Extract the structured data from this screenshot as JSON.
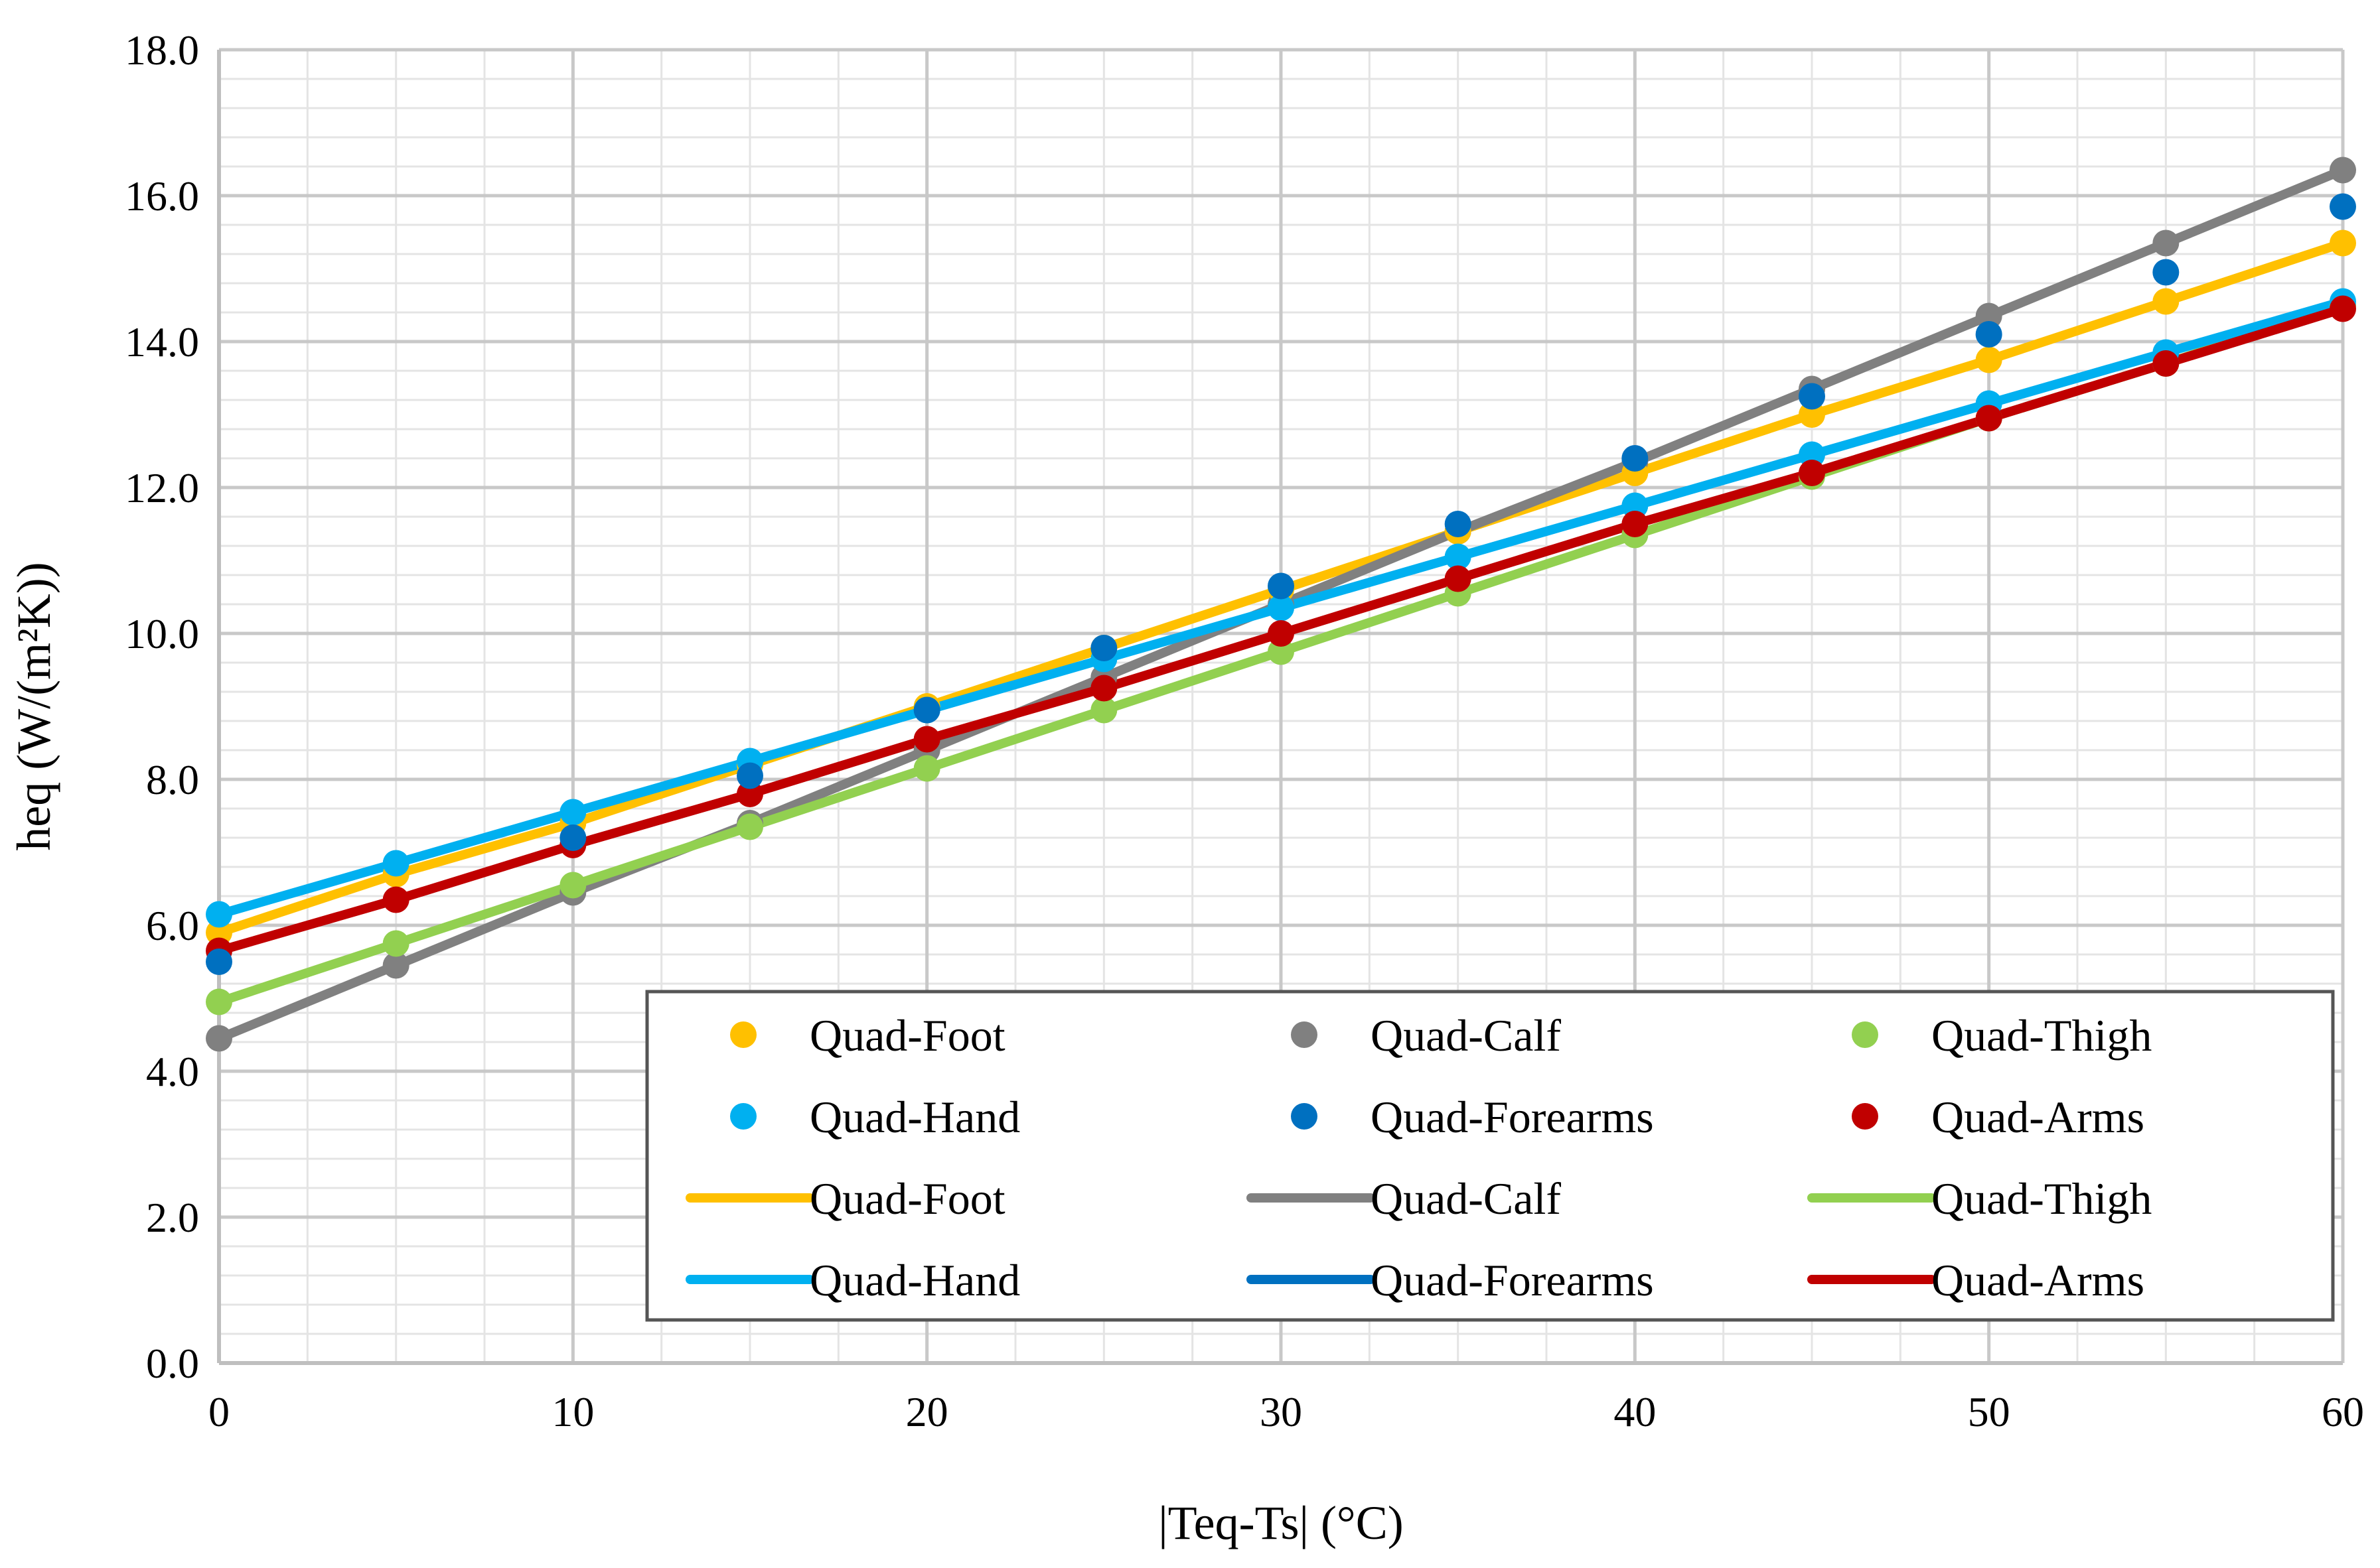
{
  "chart_data": {
    "type": "line",
    "title": "",
    "xlabel": "|Teq-Ts| (°C)",
    "ylabel": "heq (W/(m²K))",
    "xlim": [
      0,
      60
    ],
    "ylim": [
      0,
      18
    ],
    "xticks": [
      0,
      10,
      20,
      30,
      40,
      50,
      60
    ],
    "yticks": [
      0,
      2,
      4,
      6,
      8,
      10,
      12,
      14,
      16,
      18
    ],
    "xtick_labels": [
      "0",
      "10",
      "20",
      "30",
      "40",
      "50",
      "60"
    ],
    "ytick_labels": [
      "0.0",
      "2.0",
      "4.0",
      "6.0",
      "8.0",
      "10.0",
      "12.0",
      "14.0",
      "16.0",
      "18.0"
    ],
    "grid": "major and minor",
    "legend_position": "bottom-right",
    "x": [
      0,
      5,
      10,
      15,
      20,
      25,
      30,
      35,
      40,
      45,
      50,
      55,
      60
    ],
    "series": [
      {
        "name": "Quad-Foot",
        "color": "#FFC000",
        "values": [
          5.9,
          6.7,
          7.4,
          8.2,
          9.0,
          9.8,
          10.6,
          11.4,
          12.2,
          13.0,
          13.75,
          14.55,
          15.35
        ]
      },
      {
        "name": "Quad-Calf",
        "color": "#808080",
        "values": [
          4.45,
          5.45,
          6.45,
          7.4,
          8.4,
          9.4,
          10.4,
          11.4,
          12.35,
          13.35,
          14.35,
          15.35,
          16.35
        ]
      },
      {
        "name": "Quad-Thigh",
        "color": "#92D050",
        "values": [
          4.95,
          5.75,
          6.55,
          7.35,
          8.15,
          8.95,
          9.75,
          10.55,
          11.35,
          12.15,
          12.95,
          13.7,
          14.5
        ]
      },
      {
        "name": "Quad-Hand",
        "color": "#00B0F0",
        "values": [
          6.15,
          6.85,
          7.55,
          8.25,
          8.95,
          9.65,
          10.35,
          11.05,
          11.75,
          12.45,
          13.15,
          13.85,
          14.55
        ]
      },
      {
        "name": "Quad-Forearms",
        "color": "#0070C0",
        "values": [
          5.5,
          null,
          7.2,
          8.05,
          8.95,
          9.8,
          10.65,
          11.5,
          12.4,
          13.25,
          14.1,
          14.95,
          15.85
        ],
        "line": false
      },
      {
        "name": "Quad-Arms",
        "color": "#C00000",
        "values": [
          5.65,
          6.35,
          7.1,
          7.8,
          8.55,
          9.25,
          10.0,
          10.75,
          11.5,
          12.2,
          12.95,
          13.7,
          14.45
        ]
      }
    ],
    "legend": {
      "markers": [
        "Quad-Foot",
        "Quad-Calf",
        "Quad-Thigh",
        "Quad-Hand",
        "Quad-Forearms",
        "Quad-Arms"
      ],
      "lines": [
        "Quad-Foot",
        "Quad-Calf",
        "Quad-Thigh",
        "Quad-Hand",
        "Quad-Forearms",
        "Quad-Arms"
      ]
    }
  }
}
